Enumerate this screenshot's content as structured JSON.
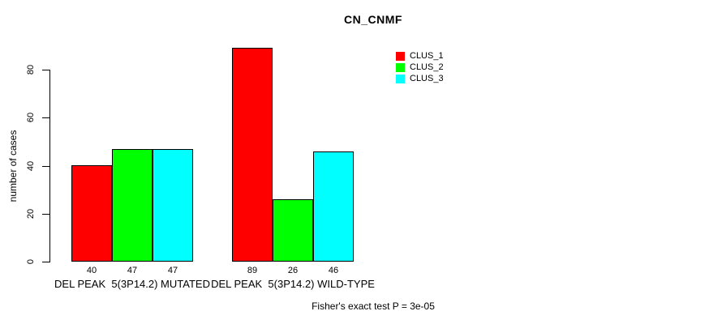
{
  "chart_data": {
    "type": "bar",
    "title": "CN_CNMF",
    "ylabel": "number of cases",
    "xlabel": "",
    "ylim": [
      0,
      80
    ],
    "yticks": [
      0,
      20,
      40,
      60,
      80
    ],
    "grid": false,
    "legend_position": "top-right",
    "categories": [
      "DEL PEAK  5(3P14.2) MUTATED",
      "DEL PEAK  5(3P14.2) WILD-TYPE"
    ],
    "series": [
      {
        "name": "CLUS_1",
        "color": "#ff0000",
        "values": [
          40,
          89
        ]
      },
      {
        "name": "CLUS_2",
        "color": "#00ff00",
        "values": [
          47,
          26
        ]
      },
      {
        "name": "CLUS_3",
        "color": "#00ffff",
        "values": [
          47,
          46
        ]
      }
    ],
    "bar_value_labels": [
      [
        40,
        47,
        47
      ],
      [
        89,
        26,
        46
      ]
    ],
    "footnote": "Fisher's exact test P = 3e-05"
  },
  "colors": {
    "background": "#ffffff",
    "text": "#000000",
    "bar_border": "#000000",
    "axis": "#000000"
  }
}
